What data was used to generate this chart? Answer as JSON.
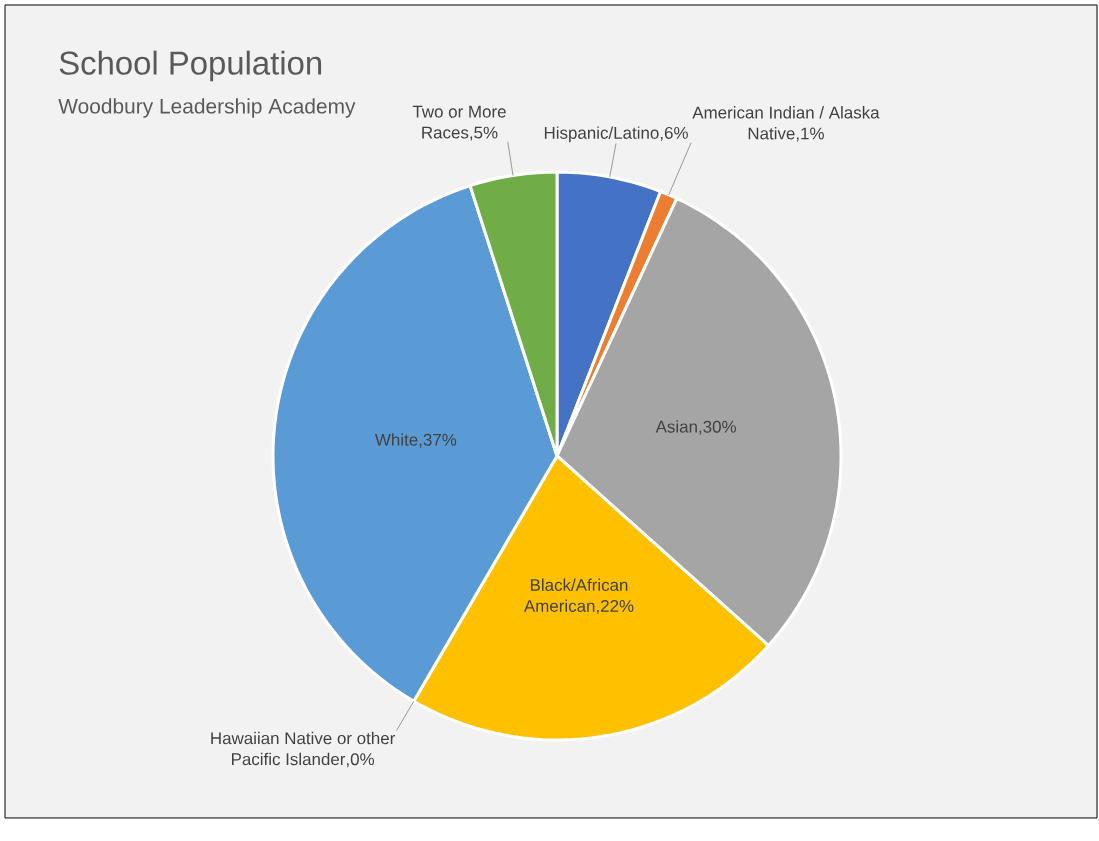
{
  "chart_data": {
    "type": "pie",
    "title": "School Population",
    "subtitle": "Woodbury Leadership Academy",
    "categories": [
      "Hispanic/Latino",
      "American Indian / Alaska Native",
      "Asian",
      "Black/African American",
      "Hawaiian Native or other Pacific Islander",
      "White",
      "Two or More Races"
    ],
    "values": [
      6,
      1,
      30,
      22,
      0,
      37,
      5
    ],
    "colors": [
      "#4472c4",
      "#ed7d31",
      "#a5a5a5",
      "#ffc000",
      "#5b9bd5",
      "#5b9bd5",
      "#70ad47"
    ],
    "value_labels": [
      ",6%",
      ",1%",
      ",30%",
      ",22%",
      ",0%",
      ",37%",
      ",5%"
    ]
  }
}
